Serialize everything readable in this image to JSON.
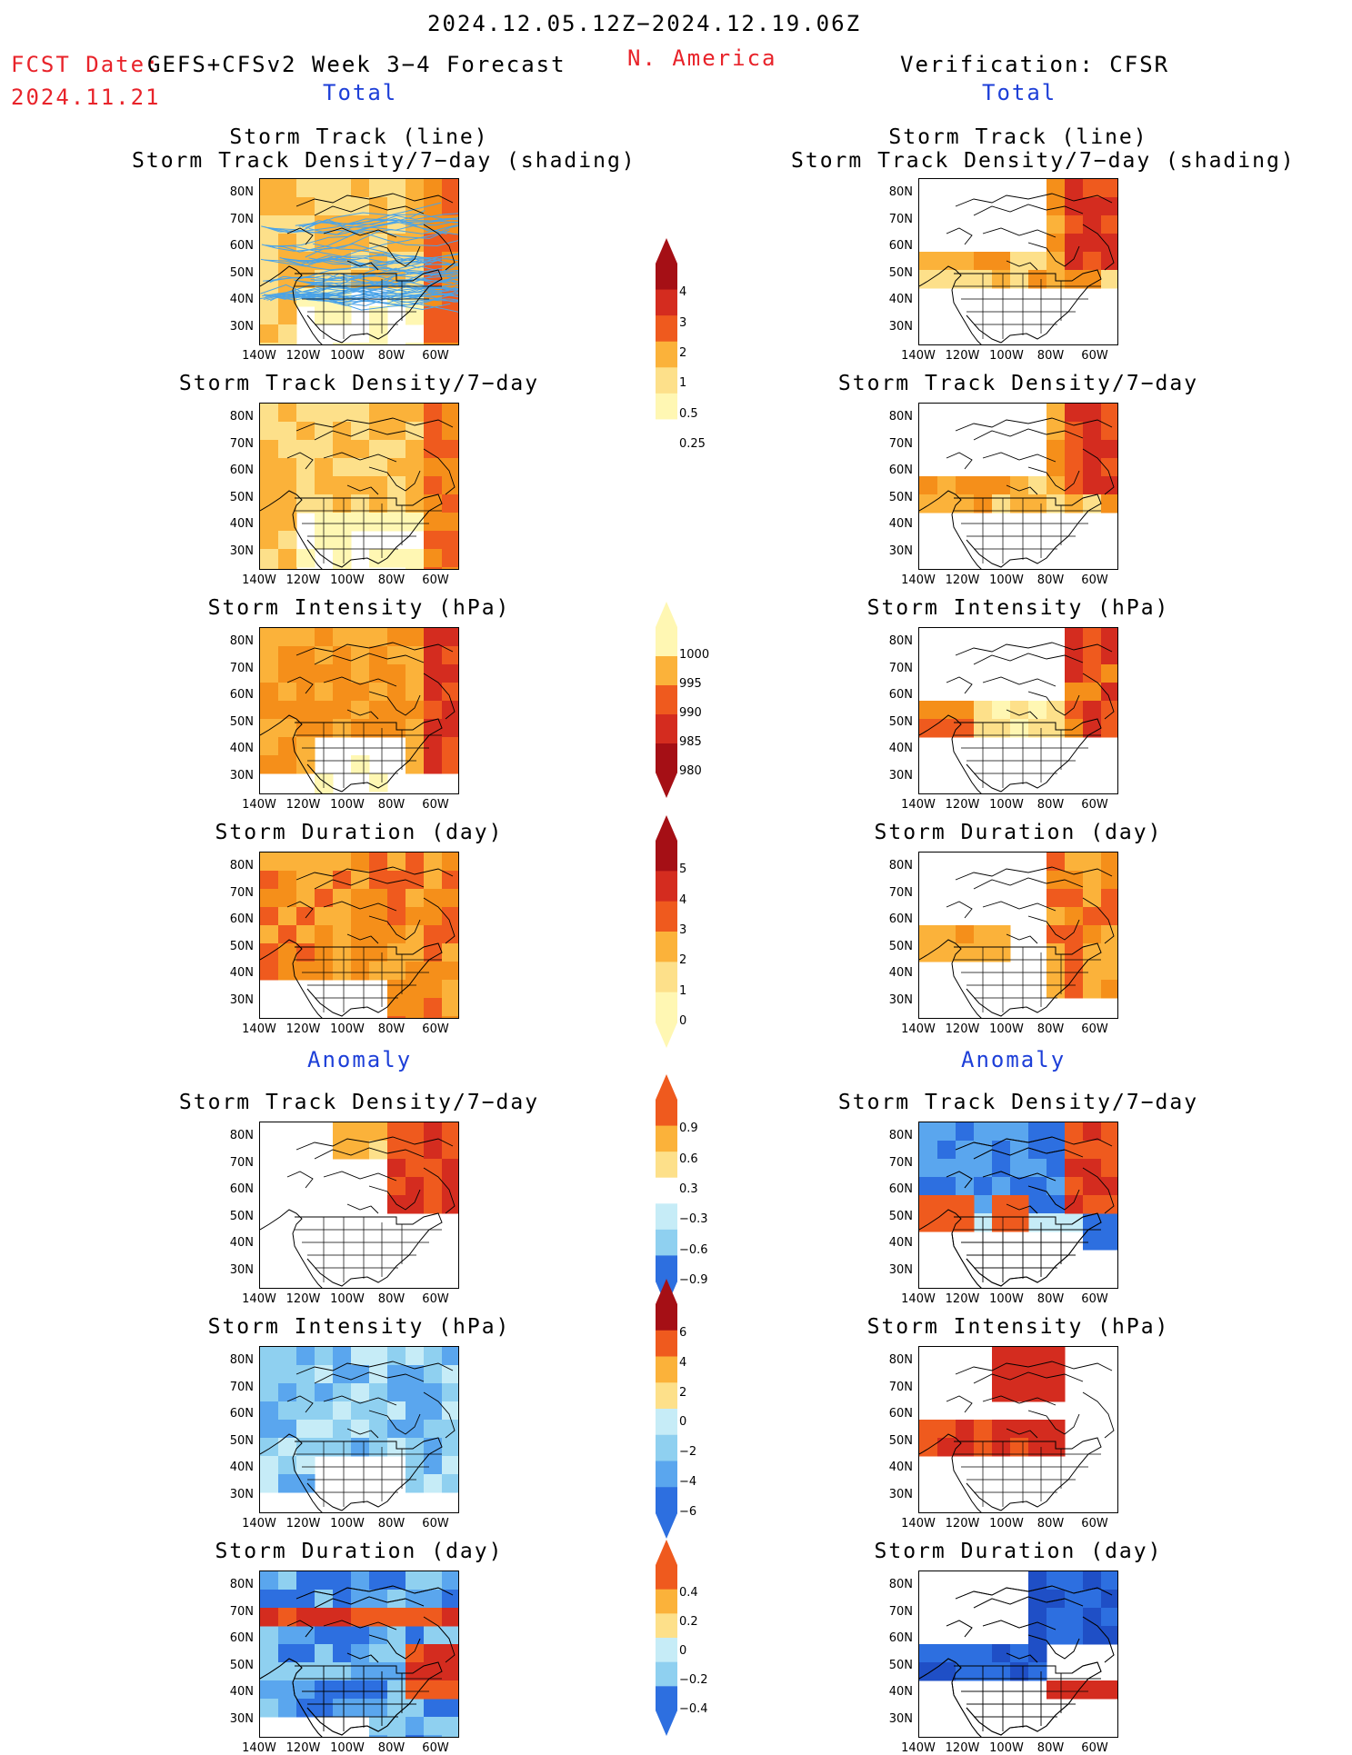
{
  "header": {
    "date_range": "2024.12.05.12Z−2024.12.19.06Z",
    "fcst_date_label": "FCST Date:",
    "fcst_title": "GEFS+CFSv2 Week 3−4 Forecast",
    "fcst_date": "2024.11.21",
    "region": "N. America",
    "verification": "Verification: CFSR"
  },
  "sections": {
    "total_left": "Total",
    "total_right": "Total",
    "anomaly_left": "Anomaly",
    "anomaly_right": "Anomaly"
  },
  "panel_titles": {
    "track_line": "Storm Track (line)",
    "track_shading": "Storm Track Density/7−day (shading)",
    "density": "Storm Track Density/7−day",
    "intensity": "Storm Intensity (hPa)",
    "duration": "Storm Duration (day)"
  },
  "axes": {
    "lat_labels": [
      "80N",
      "70N",
      "60N",
      "50N",
      "40N",
      "30N"
    ],
    "lon_labels": [
      "140W",
      "120W",
      "100W",
      "80W",
      "60W"
    ]
  },
  "colorbars": {
    "density_total": {
      "labels": [
        "4",
        "3",
        "2",
        "1",
        "0.5",
        "0.25"
      ]
    },
    "intensity_total": {
      "labels": [
        "1000",
        "995",
        "990",
        "985",
        "980"
      ]
    },
    "duration_total": {
      "labels": [
        "5",
        "4",
        "3",
        "2",
        "1",
        "0"
      ]
    },
    "density_anom": {
      "labels": [
        "0.9",
        "0.6",
        "0.3",
        "−0.3",
        "−0.6",
        "−0.9"
      ]
    },
    "intensity_anom": {
      "labels": [
        "6",
        "4",
        "2",
        "0",
        "−2",
        "−4",
        "−6"
      ]
    },
    "duration_anom": {
      "labels": [
        "0.4",
        "0.2",
        "0",
        "−0.2",
        "−0.4"
      ]
    }
  },
  "colors": {
    "red_text": "#e8232a",
    "blue_text": "#1d3fd8",
    "warm": [
      "#fff7b3",
      "#fde08a",
      "#fbb23a",
      "#f58f1a",
      "#ef5a1e",
      "#d42c1f",
      "#a50f15"
    ],
    "cool": [
      "#ffffff",
      "#c6ecf7",
      "#8fd0f0",
      "#5aa6ee",
      "#2d6fe0",
      "#1f4fc6"
    ],
    "track_line": "#4aa3e8"
  }
}
